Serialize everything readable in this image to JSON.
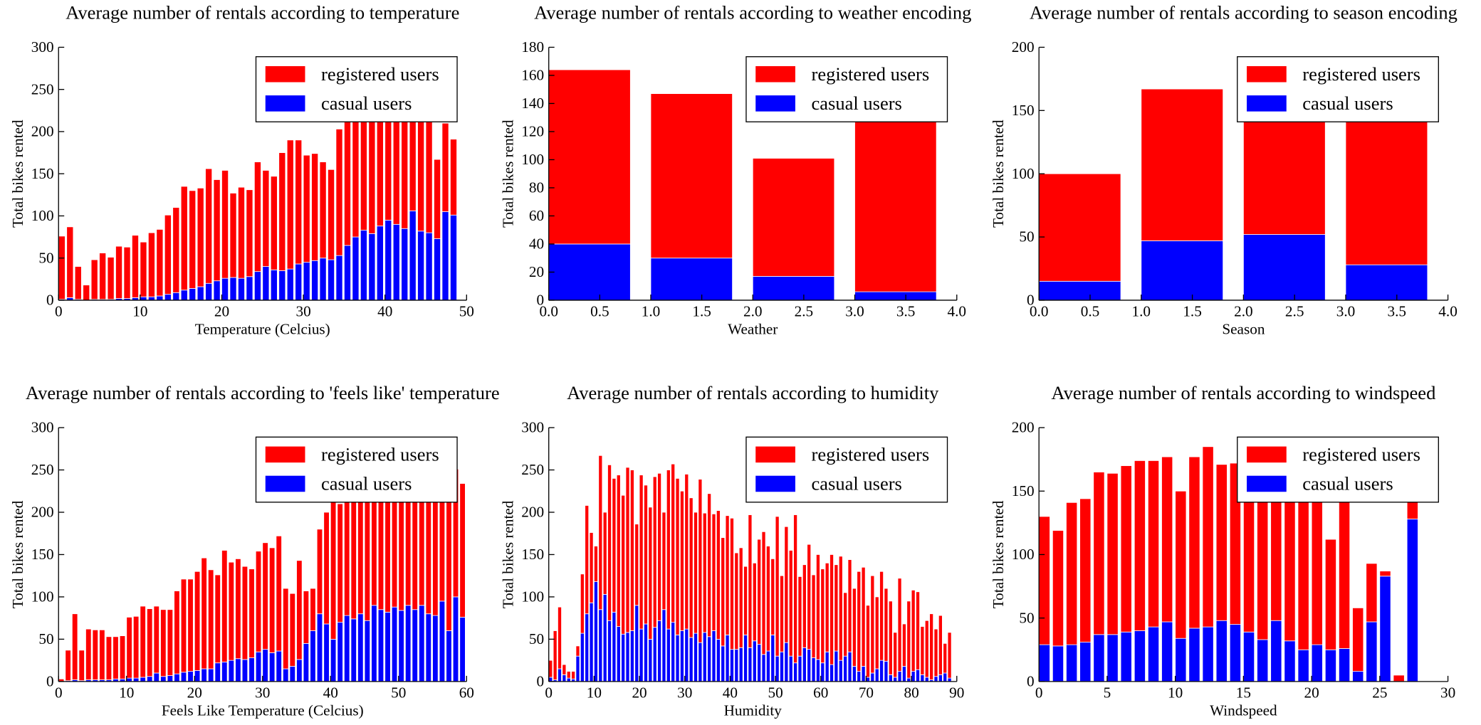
{
  "chart_data": [
    {
      "type": "bar",
      "stacked": true,
      "title": "Average number of rentals according to temperature",
      "xlabel": "Temperature (Celcius)",
      "ylabel": "Total bikes rented",
      "legend": "upper right",
      "x": [
        0,
        1,
        2,
        3,
        4,
        5,
        6,
        7,
        8,
        9,
        10,
        11,
        12,
        13,
        14,
        15,
        16,
        17,
        18,
        19,
        20,
        21,
        22,
        23,
        24,
        25,
        26,
        27,
        28,
        29,
        30,
        31,
        32,
        33,
        34,
        35,
        36,
        37,
        38,
        39,
        40,
        41,
        42,
        43,
        44,
        45,
        46,
        47,
        48
      ],
      "series": [
        {
          "name": "casual users",
          "color": "#0000ff",
          "values": [
            1,
            3,
            1,
            0,
            1,
            1,
            1,
            2,
            2,
            3,
            4,
            4,
            5,
            7,
            9,
            12,
            14,
            16,
            20,
            23,
            26,
            27,
            26,
            28,
            34,
            40,
            36,
            35,
            37,
            43,
            45,
            47,
            50,
            48,
            53,
            65,
            75,
            83,
            79,
            88,
            95,
            90,
            85,
            106,
            82,
            80,
            73,
            105,
            101
          ]
        },
        {
          "name": "registered users",
          "color": "#ff0000",
          "values": [
            75,
            84,
            39,
            18,
            47,
            55,
            50,
            62,
            61,
            74,
            65,
            76,
            79,
            94,
            101,
            123,
            116,
            117,
            136,
            120,
            128,
            100,
            108,
            103,
            130,
            114,
            111,
            140,
            153,
            147,
            127,
            127,
            114,
            107,
            150,
            155,
            160,
            157,
            171,
            157,
            165,
            160,
            170,
            164,
            158,
            150,
            94,
            105,
            90
          ]
        }
      ],
      "xlim": [
        0,
        50
      ],
      "ylim": [
        0,
        300
      ],
      "xticks": [
        0,
        10,
        20,
        30,
        40,
        50
      ],
      "yticks": [
        0,
        50,
        100,
        150,
        200,
        250,
        300
      ]
    },
    {
      "type": "bar",
      "stacked": true,
      "title": "Average number of rentals according to weather encoding",
      "xlabel": "Weather",
      "ylabel": "Total bikes rented",
      "legend": "upper right",
      "x": [
        0,
        1,
        2,
        3
      ],
      "series": [
        {
          "name": "casual users",
          "color": "#0000ff",
          "values": [
            40,
            30,
            17,
            6
          ]
        },
        {
          "name": "registered users",
          "color": "#ff0000",
          "values": [
            124,
            117,
            84,
            158
          ]
        }
      ],
      "xlim": [
        0,
        4
      ],
      "ylim": [
        0,
        180
      ],
      "xticks": [
        {
          "value": 0,
          "label": "0.0"
        },
        {
          "value": 0.5,
          "label": "0.5"
        },
        {
          "value": 1,
          "label": "1.0"
        },
        {
          "value": 1.5,
          "label": "1.5"
        },
        {
          "value": 2,
          "label": "2.0"
        },
        {
          "value": 2.5,
          "label": "2.5"
        },
        {
          "value": 3,
          "label": "3.0"
        },
        {
          "value": 3.5,
          "label": "3.5"
        },
        {
          "value": 4,
          "label": "4.0"
        }
      ],
      "yticks": [
        0,
        20,
        40,
        60,
        80,
        100,
        120,
        140,
        160,
        180
      ]
    },
    {
      "type": "bar",
      "stacked": true,
      "title": "Average number of rentals according to season encoding",
      "xlabel": "Season",
      "ylabel": "Total bikes rented",
      "legend": "upper right",
      "x": [
        0,
        1,
        2,
        3
      ],
      "series": [
        {
          "name": "casual users",
          "color": "#0000ff",
          "values": [
            15,
            47,
            52,
            28
          ]
        },
        {
          "name": "registered users",
          "color": "#ff0000",
          "values": [
            85,
            120,
            138,
            147
          ]
        }
      ],
      "xlim": [
        0,
        4
      ],
      "ylim": [
        0,
        200
      ],
      "xticks": [
        {
          "value": 0,
          "label": "0.0"
        },
        {
          "value": 0.5,
          "label": "0.5"
        },
        {
          "value": 1,
          "label": "1.0"
        },
        {
          "value": 1.5,
          "label": "1.5"
        },
        {
          "value": 2,
          "label": "2.0"
        },
        {
          "value": 2.5,
          "label": "2.5"
        },
        {
          "value": 3,
          "label": "3.0"
        },
        {
          "value": 3.5,
          "label": "3.5"
        },
        {
          "value": 4,
          "label": "4.0"
        }
      ],
      "yticks": [
        0,
        50,
        100,
        150,
        200
      ]
    },
    {
      "type": "bar",
      "stacked": true,
      "title": "Average number of rentals according to 'feels like' temperature",
      "xlabel": "Feels Like Temperature (Celcius)",
      "ylabel": "Total bikes rented",
      "legend": "upper right",
      "x": [
        0,
        1,
        2,
        3,
        4,
        5,
        6,
        7,
        8,
        9,
        10,
        11,
        12,
        13,
        14,
        15,
        16,
        17,
        18,
        19,
        20,
        21,
        22,
        23,
        24,
        25,
        26,
        27,
        28,
        29,
        30,
        31,
        32,
        33,
        34,
        35,
        36,
        37,
        38,
        39,
        40,
        41,
        42,
        43,
        44,
        45,
        46,
        47,
        48,
        49,
        50,
        51,
        52,
        53,
        54,
        55,
        56,
        57,
        58,
        59
      ],
      "series": [
        {
          "name": "casual users",
          "color": "#0000ff",
          "values": [
            0,
            1,
            2,
            1,
            2,
            2,
            2,
            2,
            3,
            3,
            4,
            4,
            5,
            6,
            10,
            6,
            7,
            9,
            11,
            12,
            13,
            15,
            15,
            22,
            23,
            25,
            27,
            26,
            28,
            35,
            38,
            34,
            36,
            15,
            18,
            26,
            45,
            60,
            80,
            68,
            50,
            70,
            78,
            74,
            80,
            72,
            90,
            85,
            82,
            88,
            84,
            90,
            85,
            90,
            80,
            78,
            95,
            60,
            100,
            76
          ]
        },
        {
          "name": "registered users",
          "color": "#ff0000",
          "values": [
            3,
            36,
            78,
            36,
            60,
            59,
            59,
            51,
            50,
            51,
            72,
            73,
            84,
            80,
            79,
            79,
            78,
            98,
            110,
            109,
            117,
            131,
            117,
            104,
            132,
            116,
            118,
            110,
            105,
            119,
            126,
            124,
            136,
            95,
            86,
            117,
            62,
            50,
            100,
            132,
            170,
            140,
            147,
            156,
            160,
            163,
            155,
            155,
            168,
            157,
            171,
            160,
            160,
            170,
            170,
            162,
            150,
            175,
            151,
            158
          ]
        }
      ],
      "xlim": [
        0,
        60
      ],
      "ylim": [
        0,
        300
      ],
      "xticks": [
        0,
        10,
        20,
        30,
        40,
        50,
        60
      ],
      "yticks": [
        0,
        50,
        100,
        150,
        200,
        250,
        300
      ]
    },
    {
      "type": "bar",
      "stacked": true,
      "title": "Average number of rentals according to humidity",
      "xlabel": "Humidity",
      "ylabel": "Total bikes rented",
      "legend": "upper right",
      "x": [
        0,
        1,
        2,
        3,
        4,
        5,
        6,
        7,
        8,
        9,
        10,
        11,
        12,
        13,
        14,
        15,
        16,
        17,
        18,
        19,
        20,
        21,
        22,
        23,
        24,
        25,
        26,
        27,
        28,
        29,
        30,
        31,
        32,
        33,
        34,
        35,
        36,
        37,
        38,
        39,
        40,
        41,
        42,
        43,
        44,
        45,
        46,
        47,
        48,
        49,
        50,
        51,
        52,
        53,
        54,
        55,
        56,
        57,
        58,
        59,
        60,
        61,
        62,
        63,
        64,
        65,
        66,
        67,
        68,
        69,
        70,
        71,
        72,
        73,
        74,
        75,
        76,
        77,
        78,
        79,
        80,
        81,
        82,
        83,
        84,
        85,
        86,
        87,
        88
      ],
      "series": [
        {
          "name": "casual users",
          "color": "#0000ff",
          "values": [
            5,
            2,
            15,
            8,
            4,
            3,
            30,
            57,
            80,
            93,
            118,
            85,
            103,
            72,
            82,
            65,
            56,
            58,
            60,
            90,
            62,
            68,
            50,
            64,
            72,
            85,
            62,
            70,
            55,
            60,
            62,
            52,
            57,
            46,
            58,
            53,
            60,
            50,
            42,
            55,
            38,
            38,
            40,
            55,
            40,
            48,
            44,
            32,
            36,
            55,
            30,
            35,
            46,
            30,
            22,
            30,
            40,
            38,
            28,
            26,
            22,
            35,
            20,
            36,
            25,
            30,
            35,
            18,
            12,
            18,
            5,
            10,
            15,
            25,
            24,
            8,
            5,
            12,
            18,
            4,
            12,
            14,
            8,
            5,
            2,
            6,
            8,
            10,
            4
          ]
        },
        {
          "name": "registered users",
          "color": "#ff0000",
          "values": [
            20,
            58,
            73,
            12,
            8,
            9,
            12,
            70,
            128,
            83,
            42,
            182,
            97,
            184,
            158,
            179,
            164,
            195,
            190,
            96,
            182,
            164,
            156,
            178,
            174,
            115,
            188,
            187,
            185,
            165,
            183,
            165,
            143,
            193,
            141,
            169,
            138,
            152,
            128,
            141,
            155,
            114,
            118,
            81,
            157,
            92,
            124,
            145,
            124,
            90,
            165,
            90,
            137,
            125,
            175,
            94,
            98,
            124,
            98,
            124,
            111,
            105,
            130,
            102,
            123,
            75,
            109,
            92,
            118,
            117,
            85,
            115,
            85,
            105,
            86,
            87,
            53,
            110,
            50,
            91,
            96,
            92,
            57,
            67,
            78,
            56,
            70,
            35,
            54
          ]
        }
      ],
      "xlim": [
        0,
        90
      ],
      "ylim": [
        0,
        300
      ],
      "xticks": [
        0,
        10,
        20,
        30,
        40,
        50,
        60,
        70,
        80,
        90
      ],
      "yticks": [
        0,
        50,
        100,
        150,
        200,
        250,
        300
      ]
    },
    {
      "type": "bar",
      "stacked": true,
      "title": "Average number of rentals according to windspeed",
      "xlabel": "Windspeed",
      "ylabel": "Total bikes rented",
      "legend": "upper right",
      "x": [
        0,
        1,
        2,
        3,
        4,
        5,
        6,
        7,
        8,
        9,
        10,
        11,
        12,
        13,
        14,
        15,
        16,
        17,
        18,
        19,
        20,
        21,
        22,
        23,
        24,
        25,
        26,
        27
      ],
      "series": [
        {
          "name": "casual users",
          "color": "#0000ff",
          "values": [
            29,
            28,
            29,
            31,
            37,
            37,
            39,
            40,
            43,
            47,
            34,
            42,
            43,
            48,
            45,
            39,
            33,
            48,
            32,
            25,
            29,
            25,
            26,
            8,
            47,
            83,
            0,
            128
          ]
        },
        {
          "name": "registered users",
          "color": "#ff0000",
          "values": [
            101,
            91,
            112,
            113,
            128,
            127,
            131,
            134,
            131,
            130,
            116,
            135,
            142,
            123,
            127,
            121,
            122,
            117,
            128,
            125,
            126,
            87,
            119,
            50,
            46,
            4,
            5,
            32
          ]
        }
      ],
      "xlim": [
        0,
        30
      ],
      "ylim": [
        0,
        200
      ],
      "xticks": [
        0,
        5,
        10,
        15,
        20,
        25,
        30
      ],
      "yticks": [
        0,
        50,
        100,
        150,
        200
      ]
    }
  ]
}
